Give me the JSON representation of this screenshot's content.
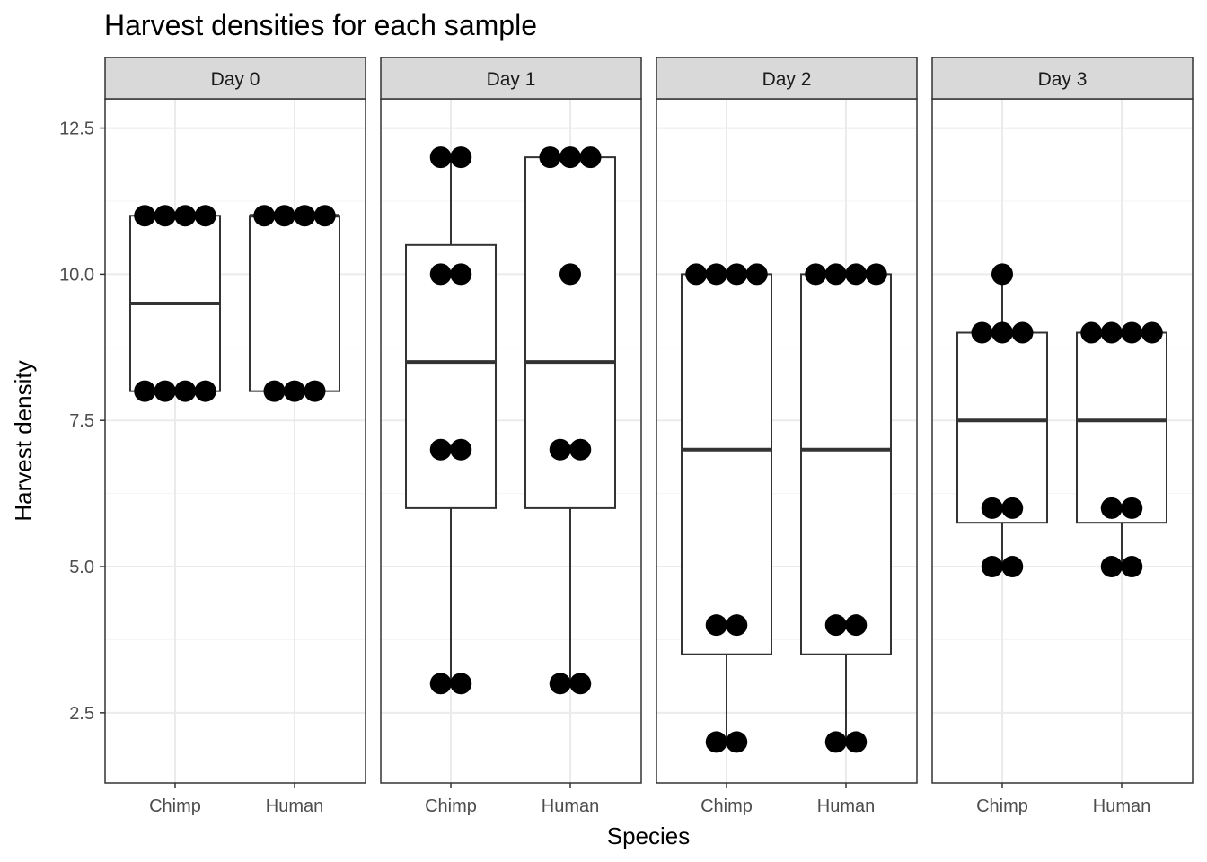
{
  "chart_data": {
    "type": "box",
    "title": "Harvest densities for each sample",
    "xlabel": "Species",
    "ylabel": "Harvest density",
    "ylim": [
      1.3,
      13.0
    ],
    "yticks": [
      2.5,
      5.0,
      7.5,
      10.0,
      12.5
    ],
    "ytick_labels": [
      "2.5",
      "5.0",
      "7.5",
      "10.0",
      "12.5"
    ],
    "grid": true,
    "categories": [
      "Chimp",
      "Human"
    ],
    "panels": [
      {
        "facet": "Day 0",
        "groups": [
          {
            "category": "Chimp",
            "q1": 8,
            "median": 9.5,
            "q3": 11,
            "whisker_low": 8,
            "whisker_high": 11,
            "points": [
              8,
              8,
              8,
              8,
              11,
              11,
              11,
              11
            ]
          },
          {
            "category": "Human",
            "q1": 8,
            "median": 11,
            "q3": 11,
            "whisker_low": 8,
            "whisker_high": 11,
            "points": [
              8,
              8,
              8,
              11,
              11,
              11,
              11
            ]
          }
        ]
      },
      {
        "facet": "Day 1",
        "groups": [
          {
            "category": "Chimp",
            "q1": 6,
            "median": 8.5,
            "q3": 10.5,
            "whisker_low": 3,
            "whisker_high": 12,
            "points": [
              3,
              3,
              7,
              7,
              10,
              10,
              12,
              12
            ]
          },
          {
            "category": "Human",
            "q1": 6,
            "median": 8.5,
            "q3": 12,
            "whisker_low": 3,
            "whisker_high": 12,
            "points": [
              3,
              3,
              7,
              7,
              10,
              12,
              12,
              12
            ]
          }
        ]
      },
      {
        "facet": "Day 2",
        "groups": [
          {
            "category": "Chimp",
            "q1": 3.5,
            "median": 7,
            "q3": 10,
            "whisker_low": 2,
            "whisker_high": 10,
            "points": [
              2,
              2,
              4,
              4,
              10,
              10,
              10,
              10
            ]
          },
          {
            "category": "Human",
            "q1": 3.5,
            "median": 7,
            "q3": 10,
            "whisker_low": 2,
            "whisker_high": 10,
            "points": [
              2,
              2,
              4,
              4,
              10,
              10,
              10,
              10
            ]
          }
        ]
      },
      {
        "facet": "Day 3",
        "groups": [
          {
            "category": "Chimp",
            "q1": 5.75,
            "median": 7.5,
            "q3": 9,
            "whisker_low": 5,
            "whisker_high": 10,
            "points": [
              5,
              5,
              6,
              6,
              9,
              9,
              9,
              10
            ]
          },
          {
            "category": "Human",
            "q1": 5.75,
            "median": 7.5,
            "q3": 9,
            "whisker_low": 5,
            "whisker_high": 9,
            "points": [
              5,
              5,
              6,
              6,
              9,
              9,
              9,
              9
            ]
          }
        ]
      }
    ],
    "colors": {
      "strip_fill": "#d9d9d9",
      "panel_border": "#333333",
      "grid_major": "#ebebeb",
      "grid_minor": "#f5f5f5",
      "box_line": "#333333",
      "point": "#000000"
    }
  }
}
